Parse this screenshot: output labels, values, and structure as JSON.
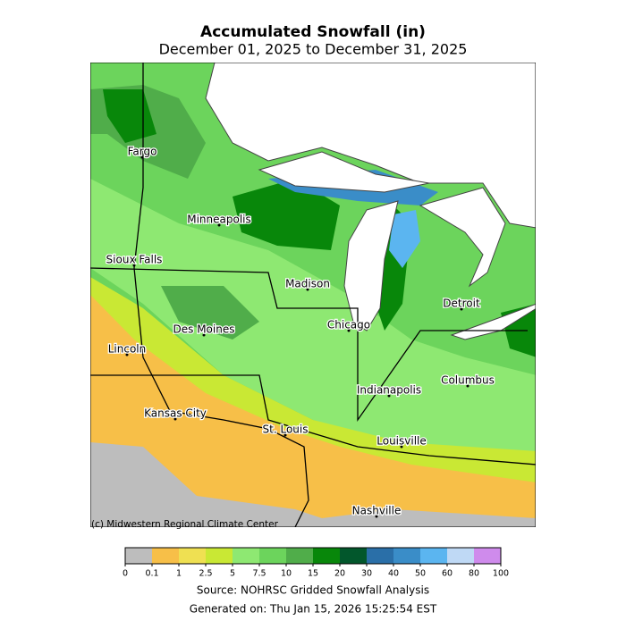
{
  "header": {
    "title": "Accumulated Snowfall (in)",
    "subtitle": "December 01, 2025 to December 31, 2025"
  },
  "map": {
    "cities": [
      "Fargo",
      "Minneapolis",
      "Sioux Falls",
      "Madison",
      "Detroit",
      "Des Moines",
      "Chicago",
      "Lincoln",
      "Columbus",
      "Indianapolis",
      "Kansas City",
      "St. Louis",
      "Louisville",
      "Nashville"
    ],
    "credit": "(c) Midwestern Regional Climate Center"
  },
  "colorbar": {
    "ticks": [
      0,
      0.1,
      1,
      2.5,
      5,
      7.5,
      10,
      15,
      20,
      30,
      40,
      50,
      60,
      80,
      100
    ],
    "colors": [
      "#bdbdbd",
      "#f7bf48",
      "#efe052",
      "#c9e834",
      "#8ee872",
      "#6cd45c",
      "#50ad4a",
      "#08870a",
      "#02572c",
      "#2a6fa8",
      "#3a8dc8",
      "#5bb5f0",
      "#bfd9f5",
      "#cf8bec"
    ]
  },
  "footer": {
    "source": "Source: NOHRSC Gridded Snowfall Analysis",
    "generated": "Generated on: Thu Jan 15, 2026 15:25:54 EST"
  }
}
